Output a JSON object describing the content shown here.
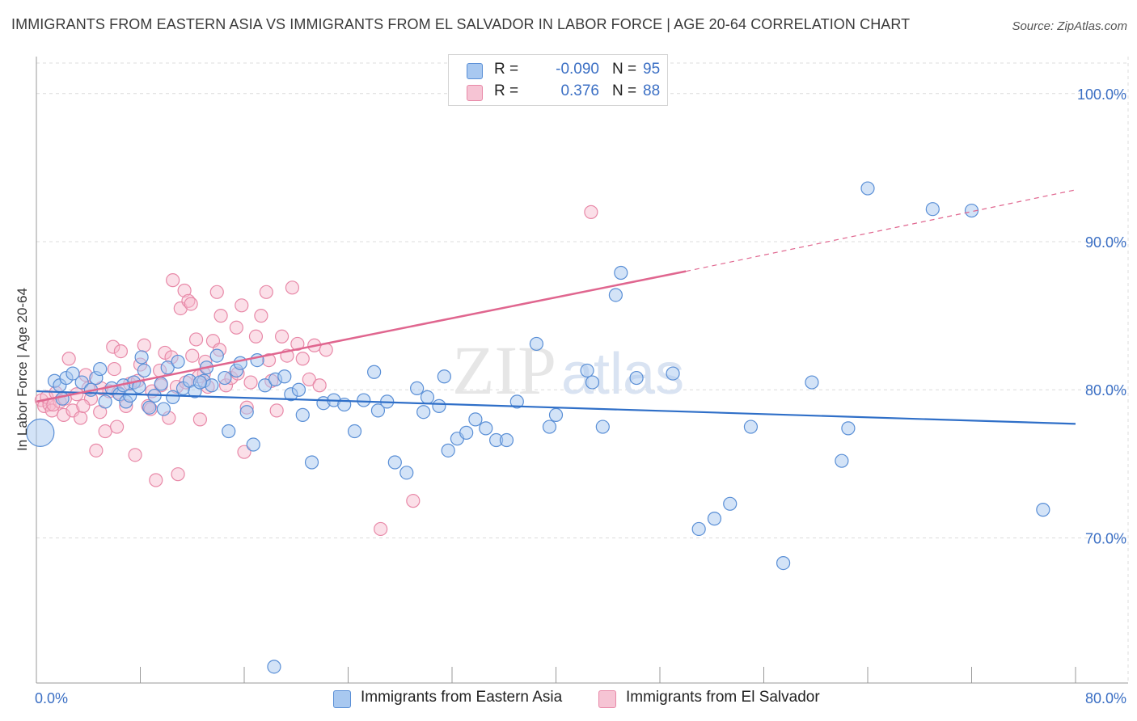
{
  "title": "IMMIGRANTS FROM EASTERN ASIA VS IMMIGRANTS FROM EL SALVADOR IN LABOR FORCE | AGE 20-64 CORRELATION CHART",
  "source": "Source: ZipAtlas.com",
  "watermark": {
    "zip": "ZIP",
    "atlas": "atlas"
  },
  "legend": {
    "rows": [
      {
        "r_label": "R =",
        "r_value": "-0.090",
        "n_label": "N =",
        "n_value": "95"
      },
      {
        "r_label": "R =",
        "r_value": "0.376",
        "n_label": "N =",
        "n_value": "88"
      }
    ]
  },
  "colors": {
    "blue_fill": "#a8c8f0",
    "blue_edge": "#5a8fd6",
    "blue_line": "#2f6fc8",
    "pink_fill": "#f6b8cc",
    "pink_edge": "#e889a8",
    "pink_line": "#e0668f",
    "tick_label": "#3b6fc4",
    "grid": "#dcdcdc"
  },
  "chart_data": {
    "type": "scatter",
    "ylabel": "In Labor Force | Age 20-64",
    "xlim": [
      0,
      80
    ],
    "ylim": [
      60.2,
      102.5
    ],
    "x_tick_labels": [
      {
        "value": 0,
        "label": "0.0%"
      },
      {
        "value": 80,
        "label": "80.0%"
      }
    ],
    "y_tick_labels": [
      {
        "value": 70,
        "label": "70.0%"
      },
      {
        "value": 80,
        "label": "80.0%"
      },
      {
        "value": 90,
        "label": "90.0%"
      },
      {
        "value": 100,
        "label": "100.0%"
      }
    ],
    "series": [
      {
        "name": "Immigrants from Eastern Asia",
        "trend": {
          "x0": 0,
          "y0": 79.9,
          "x1": 80,
          "y1": 77.7
        },
        "points": [
          [
            0.3,
            77.1
          ],
          [
            1.4,
            80.6
          ],
          [
            1.8,
            80.3
          ],
          [
            2.3,
            80.8
          ],
          [
            2.8,
            81.1
          ],
          [
            3.5,
            80.5
          ],
          [
            4.2,
            80.0
          ],
          [
            4.6,
            80.8
          ],
          [
            5.3,
            79.2
          ],
          [
            5.8,
            80.1
          ],
          [
            6.4,
            79.7
          ],
          [
            6.9,
            79.2
          ],
          [
            7.5,
            80.5
          ],
          [
            7.9,
            80.2
          ],
          [
            8.3,
            81.3
          ],
          [
            8.7,
            78.8
          ],
          [
            9.1,
            79.6
          ],
          [
            9.6,
            80.4
          ],
          [
            10.1,
            81.5
          ],
          [
            10.5,
            79.5
          ],
          [
            11.3,
            80.1
          ],
          [
            11.8,
            80.6
          ],
          [
            12.2,
            79.9
          ],
          [
            12.9,
            80.6
          ],
          [
            13.5,
            80.3
          ],
          [
            13.9,
            82.3
          ],
          [
            14.5,
            80.8
          ],
          [
            14.8,
            77.2
          ],
          [
            15.4,
            81.3
          ],
          [
            16.2,
            78.5
          ],
          [
            17.0,
            82.0
          ],
          [
            16.7,
            76.3
          ],
          [
            17.6,
            80.3
          ],
          [
            18.4,
            80.7
          ],
          [
            19.1,
            80.9
          ],
          [
            19.6,
            79.7
          ],
          [
            20.5,
            78.3
          ],
          [
            21.2,
            75.1
          ],
          [
            22.1,
            79.1
          ],
          [
            22.9,
            79.3
          ],
          [
            23.7,
            79.0
          ],
          [
            24.5,
            77.2
          ],
          [
            25.2,
            79.3
          ],
          [
            26.3,
            78.6
          ],
          [
            27.0,
            79.2
          ],
          [
            27.6,
            75.1
          ],
          [
            28.5,
            74.4
          ],
          [
            29.3,
            80.1
          ],
          [
            30.1,
            79.5
          ],
          [
            31.0,
            78.9
          ],
          [
            31.7,
            75.9
          ],
          [
            32.4,
            76.7
          ],
          [
            33.1,
            77.1
          ],
          [
            33.8,
            78.0
          ],
          [
            34.6,
            77.4
          ],
          [
            35.4,
            76.6
          ],
          [
            36.2,
            76.6
          ],
          [
            37.0,
            79.2
          ],
          [
            38.5,
            83.1
          ],
          [
            39.5,
            77.5
          ],
          [
            40.0,
            78.3
          ],
          [
            42.4,
            81.3
          ],
          [
            42.8,
            80.5
          ],
          [
            43.6,
            77.5
          ],
          [
            44.6,
            86.4
          ],
          [
            45.0,
            87.9
          ],
          [
            46.2,
            80.8
          ],
          [
            49.0,
            81.1
          ],
          [
            51.0,
            70.6
          ],
          [
            52.2,
            71.3
          ],
          [
            53.4,
            72.3
          ],
          [
            55.0,
            77.5
          ],
          [
            57.5,
            68.3
          ],
          [
            59.7,
            80.5
          ],
          [
            62.0,
            75.2
          ],
          [
            62.5,
            77.4
          ],
          [
            64.0,
            93.6
          ],
          [
            69.0,
            92.2
          ],
          [
            72.0,
            92.1
          ],
          [
            77.5,
            71.9
          ],
          [
            18.3,
            61.3
          ],
          [
            8.1,
            82.2
          ],
          [
            9.8,
            78.7
          ],
          [
            6.7,
            80.3
          ],
          [
            10.9,
            81.9
          ],
          [
            12.6,
            80.5
          ],
          [
            15.7,
            81.8
          ],
          [
            20.2,
            80.0
          ],
          [
            26.0,
            81.2
          ],
          [
            29.8,
            78.5
          ],
          [
            31.4,
            80.9
          ],
          [
            13.1,
            81.5
          ],
          [
            4.9,
            81.4
          ],
          [
            2.0,
            79.4
          ],
          [
            7.2,
            79.6
          ]
        ]
      },
      {
        "name": "Immigrants from El Salvador",
        "trend": {
          "x0": 0,
          "y0": 79.2,
          "x1": 50,
          "y1": 88.0,
          "x1_dashed": 80,
          "y1_dashed": 93.5
        },
        "points": [
          [
            0.4,
            79.3
          ],
          [
            0.6,
            78.9
          ],
          [
            0.8,
            79.5
          ],
          [
            1.0,
            79.0
          ],
          [
            1.2,
            78.6
          ],
          [
            1.5,
            79.8
          ],
          [
            1.8,
            79.2
          ],
          [
            2.1,
            78.3
          ],
          [
            2.5,
            82.1
          ],
          [
            2.8,
            78.6
          ],
          [
            3.1,
            79.7
          ],
          [
            3.4,
            78.1
          ],
          [
            3.8,
            81.0
          ],
          [
            4.2,
            79.4
          ],
          [
            4.6,
            75.9
          ],
          [
            4.9,
            78.5
          ],
          [
            5.3,
            77.2
          ],
          [
            5.6,
            79.9
          ],
          [
            5.9,
            82.9
          ],
          [
            6.2,
            77.5
          ],
          [
            6.5,
            82.6
          ],
          [
            6.9,
            78.9
          ],
          [
            7.2,
            80.4
          ],
          [
            7.6,
            75.6
          ],
          [
            8.0,
            81.7
          ],
          [
            8.3,
            83.0
          ],
          [
            8.6,
            78.9
          ],
          [
            8.9,
            79.9
          ],
          [
            9.2,
            73.9
          ],
          [
            9.6,
            80.3
          ],
          [
            9.9,
            82.5
          ],
          [
            10.2,
            78.1
          ],
          [
            10.5,
            87.4
          ],
          [
            10.8,
            80.2
          ],
          [
            11.1,
            85.5
          ],
          [
            11.4,
            86.7
          ],
          [
            11.7,
            86.0
          ],
          [
            12.0,
            82.3
          ],
          [
            12.3,
            83.4
          ],
          [
            12.6,
            78.0
          ],
          [
            12.9,
            81.1
          ],
          [
            13.2,
            80.2
          ],
          [
            13.6,
            83.3
          ],
          [
            13.9,
            86.6
          ],
          [
            14.2,
            85.0
          ],
          [
            14.6,
            80.3
          ],
          [
            15.0,
            80.8
          ],
          [
            15.4,
            84.2
          ],
          [
            15.8,
            85.7
          ],
          [
            16.2,
            78.8
          ],
          [
            16.5,
            80.5
          ],
          [
            16.9,
            83.6
          ],
          [
            17.3,
            85.0
          ],
          [
            17.7,
            86.6
          ],
          [
            18.1,
            80.6
          ],
          [
            18.5,
            78.6
          ],
          [
            18.9,
            83.6
          ],
          [
            19.3,
            82.3
          ],
          [
            19.7,
            86.9
          ],
          [
            20.1,
            83.1
          ],
          [
            20.5,
            82.1
          ],
          [
            21.0,
            80.7
          ],
          [
            21.4,
            83.0
          ],
          [
            21.8,
            80.3
          ],
          [
            22.3,
            82.7
          ],
          [
            26.5,
            70.6
          ],
          [
            29.0,
            72.5
          ],
          [
            42.7,
            92.0
          ],
          [
            13.0,
            81.9
          ],
          [
            10.4,
            82.2
          ],
          [
            15.5,
            81.1
          ],
          [
            17.9,
            82.0
          ],
          [
            11.9,
            85.8
          ],
          [
            9.5,
            81.3
          ],
          [
            7.8,
            80.6
          ],
          [
            6.3,
            79.8
          ],
          [
            4.0,
            80.1
          ],
          [
            3.6,
            78.9
          ],
          [
            2.2,
            79.4
          ],
          [
            1.3,
            79.0
          ],
          [
            14.1,
            82.7
          ],
          [
            16.0,
            75.8
          ],
          [
            12.5,
            80.9
          ],
          [
            10.9,
            74.3
          ],
          [
            8.8,
            78.7
          ],
          [
            6.0,
            81.4
          ],
          [
            5.0,
            80.1
          ],
          [
            11.5,
            80.5
          ]
        ]
      }
    ],
    "grid": true,
    "legend_position": "top-center"
  }
}
